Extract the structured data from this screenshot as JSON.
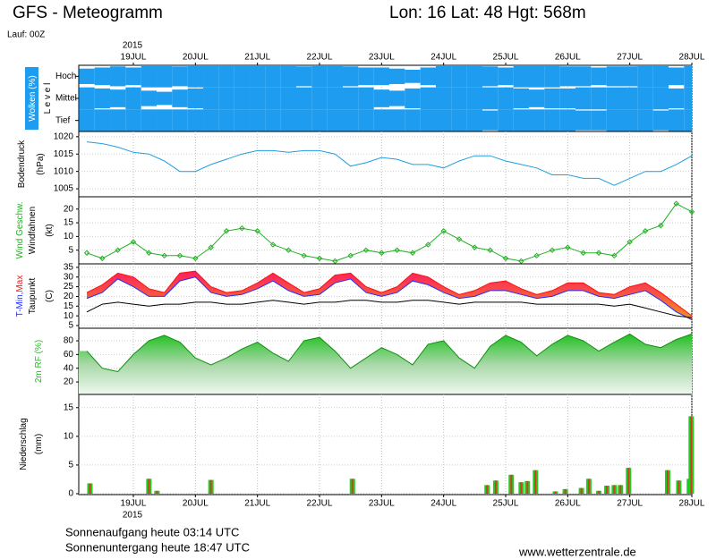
{
  "header": {
    "title": "GFS - Meteogramm",
    "location": "Lon: 16 Lat: 48 Hgt: 568m",
    "run": "Lauf: 00Z",
    "year_top": "2015",
    "year_bottom": "2015"
  },
  "footer": {
    "sunrise": "Sonnenaufgang heute 03:14 UTC",
    "sunset": "Sonnenuntergang heute 18:47 UTC",
    "website": "www.wetterzentrale.de"
  },
  "chart_data": [
    {
      "type": "cloud",
      "ylabel": "Wolken (%)",
      "level_label": "L e v e l",
      "xlim": [
        0.12,
        10
      ],
      "xticks": [
        {
          "value": 1,
          "label": "19JUL"
        },
        {
          "value": 2,
          "label": "20JUL"
        },
        {
          "value": 3,
          "label": "21JUL"
        },
        {
          "value": 4,
          "label": "22JUL"
        },
        {
          "value": 5,
          "label": "23JUL"
        },
        {
          "value": 6,
          "label": "24JUL"
        },
        {
          "value": 7,
          "label": "25JUL"
        },
        {
          "value": 8,
          "label": "26JUL"
        },
        {
          "value": 9,
          "label": "27JUL"
        },
        {
          "value": 10,
          "label": "28JUL"
        }
      ],
      "x": [
        0.25,
        0.5,
        0.75,
        1,
        1.25,
        1.5,
        1.75,
        2,
        2.25,
        2.5,
        2.75,
        3,
        3.25,
        3.5,
        3.75,
        4,
        4.25,
        4.5,
        4.75,
        5,
        5.25,
        5.5,
        5.75,
        6,
        6.25,
        6.5,
        6.75,
        7,
        7.25,
        7.5,
        7.75,
        8,
        8.25,
        8.5,
        8.75,
        9,
        9.25,
        9.5,
        9.75,
        10
      ],
      "color": "#1e9df0",
      "series": [
        {
          "name": "Hoch",
          "values": [
            70,
            80,
            90,
            80,
            100,
            100,
            90,
            100,
            100,
            100,
            100,
            100,
            100,
            100,
            90,
            100,
            100,
            90,
            80,
            80,
            70,
            60,
            80,
            100,
            100,
            100,
            90,
            80,
            100,
            100,
            100,
            90,
            90,
            80,
            90,
            90,
            100,
            100,
            80,
            100
          ]
        },
        {
          "name": "Mittel",
          "values": [
            100,
            90,
            80,
            100,
            70,
            60,
            80,
            90,
            100,
            100,
            100,
            100,
            100,
            100,
            100,
            100,
            100,
            100,
            100,
            80,
            70,
            90,
            100,
            100,
            100,
            100,
            100,
            100,
            90,
            80,
            90,
            90,
            100,
            100,
            100,
            100,
            100,
            100,
            90,
            100
          ]
        },
        {
          "name": "Tief",
          "values": [
            100,
            100,
            100,
            100,
            100,
            100,
            100,
            100,
            100,
            100,
            100,
            100,
            100,
            100,
            100,
            100,
            100,
            100,
            100,
            100,
            100,
            100,
            100,
            100,
            100,
            100,
            90,
            100,
            100,
            100,
            100,
            100,
            90,
            90,
            100,
            100,
            100,
            90,
            100,
            100
          ]
        }
      ]
    },
    {
      "type": "line",
      "ylabel": [
        "Bodendruck",
        "(hPa)"
      ],
      "xlim": [
        0.12,
        10
      ],
      "ylim": [
        1002.7,
        1021.5
      ],
      "yticks": [
        1005,
        1010,
        1015,
        1020
      ],
      "x": [
        0.25,
        0.5,
        0.75,
        1,
        1.25,
        1.5,
        1.75,
        2,
        2.25,
        2.5,
        2.75,
        3,
        3.25,
        3.5,
        3.75,
        4,
        4.25,
        4.5,
        4.75,
        5,
        5.25,
        5.5,
        5.75,
        6,
        6.25,
        6.5,
        6.75,
        7,
        7.25,
        7.5,
        7.75,
        8,
        8.25,
        8.5,
        8.75,
        9,
        9.25,
        9.5,
        9.75,
        10
      ],
      "series": [
        {
          "color": "#1ea0e0",
          "values": [
            1018.5,
            1018,
            1017,
            1015.5,
            1015,
            1013,
            1010,
            1010,
            1012,
            1013.5,
            1015,
            1016,
            1016,
            1015.5,
            1016,
            1016,
            1015,
            1011.5,
            1012.5,
            1014,
            1013.5,
            1012,
            1012,
            1011,
            1013,
            1014.5,
            1014.5,
            1013,
            1012,
            1011,
            1009,
            1009,
            1008,
            1008,
            1006,
            1008,
            1010,
            1010,
            1012,
            1014.5
          ]
        }
      ]
    },
    {
      "type": "line",
      "ylabel": [
        "Windfahnen",
        "(kt)"
      ],
      "xlim": [
        0.12,
        10
      ],
      "ylim": [
        0,
        24.5
      ],
      "yticks": [
        5,
        10,
        15,
        20
      ],
      "x": [
        0.25,
        0.5,
        0.75,
        1,
        1.25,
        1.5,
        1.75,
        2,
        2.25,
        2.5,
        2.75,
        3,
        3.25,
        3.5,
        3.75,
        4,
        4.25,
        4.5,
        4.75,
        5,
        5.25,
        5.5,
        5.75,
        6,
        6.25,
        6.5,
        6.75,
        7,
        7.25,
        7.5,
        7.75,
        8,
        8.25,
        8.5,
        8.75,
        9,
        9.25,
        9.5,
        9.75,
        10
      ],
      "series": [
        {
          "name": "Wind Geschw.",
          "color": "#22b022",
          "values": [
            4,
            2,
            5,
            8,
            4,
            3,
            3,
            2,
            6,
            12,
            13,
            12,
            7,
            5,
            3,
            2,
            1,
            3,
            5,
            4,
            5,
            4,
            7,
            12,
            9,
            6,
            5,
            2,
            1,
            3,
            5,
            6,
            4,
            4,
            3,
            8,
            12,
            14,
            22,
            19
          ]
        }
      ]
    },
    {
      "type": "band",
      "ylabel": [
        "Taupunkt",
        "(C)"
      ],
      "xlim": [
        0.12,
        10
      ],
      "ylim": [
        3.6,
        36.8
      ],
      "yticks": [
        5,
        10,
        15,
        20,
        25,
        30,
        35
      ],
      "x": [
        0.25,
        0.5,
        0.75,
        1,
        1.25,
        1.5,
        1.75,
        2,
        2.25,
        2.5,
        2.75,
        3,
        3.25,
        3.5,
        3.75,
        4,
        4.25,
        4.5,
        4.75,
        5,
        5.25,
        5.5,
        5.75,
        6,
        6.25,
        6.5,
        6.75,
        7,
        7.25,
        7.5,
        7.75,
        8,
        8.25,
        8.5,
        8.75,
        9,
        9.25,
        9.5,
        9.75,
        10
      ],
      "series": [
        {
          "name": "T-Min,",
          "color": "#2030ff",
          "values": [
            19,
            22,
            29,
            25,
            20,
            20,
            28,
            30,
            22,
            20,
            21,
            24,
            28,
            23,
            20,
            21,
            27,
            29,
            22,
            20,
            22,
            28,
            26,
            22,
            19,
            20,
            23,
            23,
            21,
            19,
            20,
            23,
            23,
            20,
            19,
            21,
            23,
            18,
            12,
            8
          ]
        },
        {
          "name": "Max",
          "color": "#ff1010",
          "values": [
            22,
            26,
            32,
            30,
            24,
            22,
            32,
            33,
            25,
            22,
            23,
            27,
            32,
            27,
            22,
            24,
            31,
            32,
            25,
            22,
            25,
            32,
            30,
            25,
            21,
            23,
            27,
            28,
            24,
            21,
            23,
            27,
            27,
            22,
            21,
            25,
            27,
            22,
            16,
            10
          ]
        },
        {
          "name": "Taupunkt",
          "color": "#000000",
          "values": [
            12,
            16,
            17,
            16,
            15,
            16,
            16,
            17,
            17,
            16,
            16,
            17,
            18,
            17,
            16,
            17,
            17,
            18,
            18,
            17,
            17,
            18,
            18,
            17,
            16,
            17,
            17,
            17,
            17,
            16,
            16,
            16,
            16,
            16,
            15,
            16,
            14,
            12,
            10,
            9
          ]
        }
      ]
    },
    {
      "type": "area",
      "xlim": [
        0.12,
        10
      ],
      "ylim": [
        1.8,
        98.3
      ],
      "yticks": [
        20,
        40,
        60,
        80
      ],
      "x": [
        0.25,
        0.5,
        0.75,
        1,
        1.25,
        1.5,
        1.75,
        2,
        2.25,
        2.5,
        2.75,
        3,
        3.25,
        3.5,
        3.75,
        4,
        4.25,
        4.5,
        4.75,
        5,
        5.25,
        5.5,
        5.75,
        6,
        6.25,
        6.5,
        6.75,
        7,
        7.25,
        7.5,
        7.75,
        8,
        8.25,
        8.5,
        8.75,
        9,
        9.25,
        9.5,
        9.75,
        10
      ],
      "series": [
        {
          "name": "2m RF (%)",
          "color": "#22c022",
          "values": [
            65,
            40,
            35,
            60,
            80,
            88,
            78,
            55,
            45,
            55,
            68,
            78,
            62,
            50,
            80,
            85,
            65,
            40,
            55,
            70,
            60,
            45,
            75,
            80,
            55,
            40,
            72,
            88,
            78,
            58,
            75,
            88,
            80,
            65,
            78,
            90,
            75,
            70,
            82,
            90
          ]
        }
      ]
    },
    {
      "type": "bar",
      "ylabel": [
        "Niederschlag",
        "(mm)"
      ],
      "xlim": [
        0.12,
        10
      ],
      "ylim": [
        0,
        17.3
      ],
      "yticks": [
        0,
        5,
        10,
        15
      ],
      "xticks": [
        {
          "value": 1,
          "label": "19JUL"
        },
        {
          "value": 2,
          "label": "20JUL"
        },
        {
          "value": 3,
          "label": "21JUL"
        },
        {
          "value": 4,
          "label": "22JUL"
        },
        {
          "value": 5,
          "label": "23JUL"
        },
        {
          "value": 6,
          "label": "24JUL"
        },
        {
          "value": 7,
          "label": "25JUL"
        },
        {
          "value": 8,
          "label": "26JUL"
        },
        {
          "value": 9,
          "label": "27JUL"
        },
        {
          "value": 10,
          "label": "28JUL"
        }
      ],
      "x": [
        0.3,
        1.25,
        1.38,
        2.25,
        4.53,
        6.7,
        6.84,
        7.09,
        7.25,
        7.35,
        7.48,
        7.8,
        7.96,
        8.22,
        8.34,
        8.5,
        8.63,
        8.75,
        8.85,
        8.98,
        9.61,
        9.79,
        9.96,
        9.99
      ],
      "series": [
        {
          "color": "#22cc22",
          "values": [
            1.8,
            2.6,
            0.5,
            2.4,
            2.6,
            1.5,
            2.3,
            3.3,
            2,
            2.2,
            4.1,
            0.4,
            0.8,
            1,
            2.6,
            0.5,
            1.4,
            1.5,
            1.5,
            4.5,
            4.1,
            2.3,
            2.6,
            13.5
          ]
        }
      ]
    }
  ]
}
